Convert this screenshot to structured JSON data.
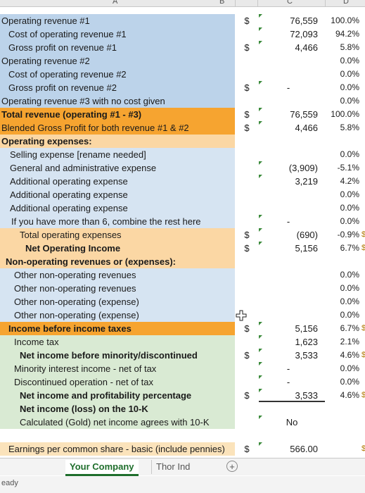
{
  "column_headers": [
    "A",
    "B",
    "C",
    "D"
  ],
  "rows": [
    {
      "label": "Operating revenue #1",
      "indent": 0,
      "fill": "blue",
      "bold": false,
      "dollar": "$",
      "value": "76,559",
      "pct": "100.0%",
      "extra": ""
    },
    {
      "label": "Cost of operating revenue #1",
      "indent": 10,
      "fill": "blue",
      "bold": false,
      "dollar": "",
      "value": "72,093",
      "pct": "94.2%",
      "extra": ""
    },
    {
      "label": "Gross profit on revenue #1",
      "indent": 10,
      "fill": "blue",
      "bold": false,
      "dollar": "$",
      "value": "4,466",
      "pct": "5.8%",
      "extra": ""
    },
    {
      "label": "Operating revenue #2",
      "indent": 0,
      "fill": "blue",
      "bold": false,
      "dollar": "",
      "value": "",
      "pct": "0.0%",
      "extra": ""
    },
    {
      "label": "Cost of operating revenue #2",
      "indent": 10,
      "fill": "blue",
      "bold": false,
      "dollar": "",
      "value": "",
      "pct": "0.0%",
      "extra": ""
    },
    {
      "label": "Gross profit on revenue #2",
      "indent": 10,
      "fill": "blue",
      "bold": false,
      "dollar": "$",
      "value": "-",
      "pct": "0.0%",
      "extra": ""
    },
    {
      "label": "Operating revenue #3 with no cost given",
      "indent": 0,
      "fill": "blue",
      "bold": false,
      "dollar": "",
      "value": "",
      "pct": "0.0%",
      "extra": ""
    },
    {
      "label": "Total revenue (operating #1 - #3)",
      "indent": 0,
      "fill": "orange",
      "bold": true,
      "dollar": "$",
      "value": "76,559",
      "pct": "100.0%",
      "extra": ""
    },
    {
      "label": "Blended Gross Profit for both revenue #1 & #2",
      "indent": 0,
      "fill": "orange",
      "bold": false,
      "dollar": "$",
      "value": "4,466",
      "pct": "5.8%",
      "extra": ""
    },
    {
      "label": "Operating expenses:",
      "indent": 0,
      "fill": "peach",
      "bold": true,
      "dollar": "",
      "value": "",
      "pct": "",
      "extra": ""
    },
    {
      "label": "Selling expense [rename needed]",
      "indent": 12,
      "fill": "ltblue",
      "bold": false,
      "dollar": "",
      "value": "",
      "pct": "0.0%",
      "extra": ""
    },
    {
      "label": "General and administrative expense",
      "indent": 12,
      "fill": "ltblue",
      "bold": false,
      "dollar": "",
      "value": "(3,909)",
      "pct": "-5.1%",
      "extra": ""
    },
    {
      "label": "Additional operating expense",
      "indent": 12,
      "fill": "ltblue",
      "bold": false,
      "dollar": "",
      "value": "3,219",
      "pct": "4.2%",
      "extra": ""
    },
    {
      "label": "Additional operating expense",
      "indent": 12,
      "fill": "ltblue",
      "bold": false,
      "dollar": "",
      "value": "",
      "pct": "0.0%",
      "extra": ""
    },
    {
      "label": "Additional operating expense",
      "indent": 12,
      "fill": "ltblue",
      "bold": false,
      "dollar": "",
      "value": "",
      "pct": "0.0%",
      "extra": ""
    },
    {
      "label": "If you have more than 6, combine the rest here",
      "indent": 14,
      "fill": "ltblue",
      "bold": false,
      "dollar": "",
      "value": "-",
      "pct": "0.0%",
      "extra": ""
    },
    {
      "label": "Total operating expenses",
      "indent": 26,
      "fill": "peach",
      "bold": false,
      "dollar": "$",
      "value": "(690)",
      "pct": "-0.9%",
      "extra": "$"
    },
    {
      "label": "Net Operating Income",
      "indent": 34,
      "fill": "peach",
      "bold": true,
      "dollar": "$",
      "value": "5,156",
      "pct": "6.7%",
      "extra": "$"
    },
    {
      "label": "Non-operating revenues or (expenses):",
      "indent": 6,
      "fill": "peach",
      "bold": true,
      "dollar": "",
      "value": "",
      "pct": "",
      "extra": ""
    },
    {
      "label": "Other non-operating revenues",
      "indent": 18,
      "fill": "ltblue",
      "bold": false,
      "dollar": "",
      "value": "",
      "pct": "0.0%",
      "extra": ""
    },
    {
      "label": "Other non-operating revenues",
      "indent": 18,
      "fill": "ltblue",
      "bold": false,
      "dollar": "",
      "value": "",
      "pct": "0.0%",
      "extra": ""
    },
    {
      "label": "Other non-operating (expense)",
      "indent": 18,
      "fill": "ltblue",
      "bold": false,
      "dollar": "",
      "value": "",
      "pct": "0.0%",
      "extra": ""
    },
    {
      "label": "Other non-operating (expense)",
      "indent": 18,
      "fill": "ltblue",
      "bold": false,
      "dollar": "",
      "value": "",
      "pct": "0.0%",
      "extra": ""
    },
    {
      "label": "Income before income taxes",
      "indent": 10,
      "fill": "orange",
      "bold": true,
      "dollar": "$",
      "value": "5,156",
      "pct": "6.7%",
      "extra": "$"
    },
    {
      "label": "Income tax",
      "indent": 18,
      "fill": "green",
      "bold": false,
      "dollar": "",
      "value": "1,623",
      "pct": "2.1%",
      "extra": ""
    },
    {
      "label": "Net income before minority/discontinued",
      "indent": 26,
      "fill": "green",
      "bold": true,
      "dollar": "$",
      "value": "3,533",
      "pct": "4.6%",
      "extra": "$"
    },
    {
      "label": "Minority interest income - net of tax",
      "indent": 18,
      "fill": "green",
      "bold": false,
      "dollar": "",
      "value": "-",
      "pct": "0.0%",
      "extra": ""
    },
    {
      "label": "Discontinued operation - net of tax",
      "indent": 18,
      "fill": "green",
      "bold": false,
      "dollar": "",
      "value": "-",
      "pct": "0.0%",
      "extra": ""
    },
    {
      "label": "Net income and profitability percentage",
      "indent": 26,
      "fill": "green",
      "bold": true,
      "dollar": "$",
      "value": "3,533",
      "pct": "4.6%",
      "extra": "$"
    },
    {
      "label": "Net income (loss) on the 10-K",
      "indent": 26,
      "fill": "green",
      "bold": true,
      "dollar": "",
      "value": "",
      "pct": "",
      "extra": ""
    },
    {
      "label": "Calculated (Gold) net income agrees with 10-K",
      "indent": 26,
      "fill": "green",
      "bold": false,
      "dollar": "",
      "value": "No",
      "pct": "",
      "extra": ""
    },
    {
      "label": "",
      "indent": 0,
      "fill": "",
      "bold": false,
      "dollar": "",
      "value": "",
      "pct": "",
      "extra": ""
    },
    {
      "label": "Earnings per common share - basic (include pennies)",
      "indent": 10,
      "fill": "gold",
      "bold": false,
      "dollar": "$",
      "value": "566.00",
      "pct": "",
      "extra": "$"
    }
  ],
  "tabs": {
    "active": "Your Company",
    "other": "Thor Ind"
  },
  "add_sheet_symbol": "+",
  "status": "eady"
}
